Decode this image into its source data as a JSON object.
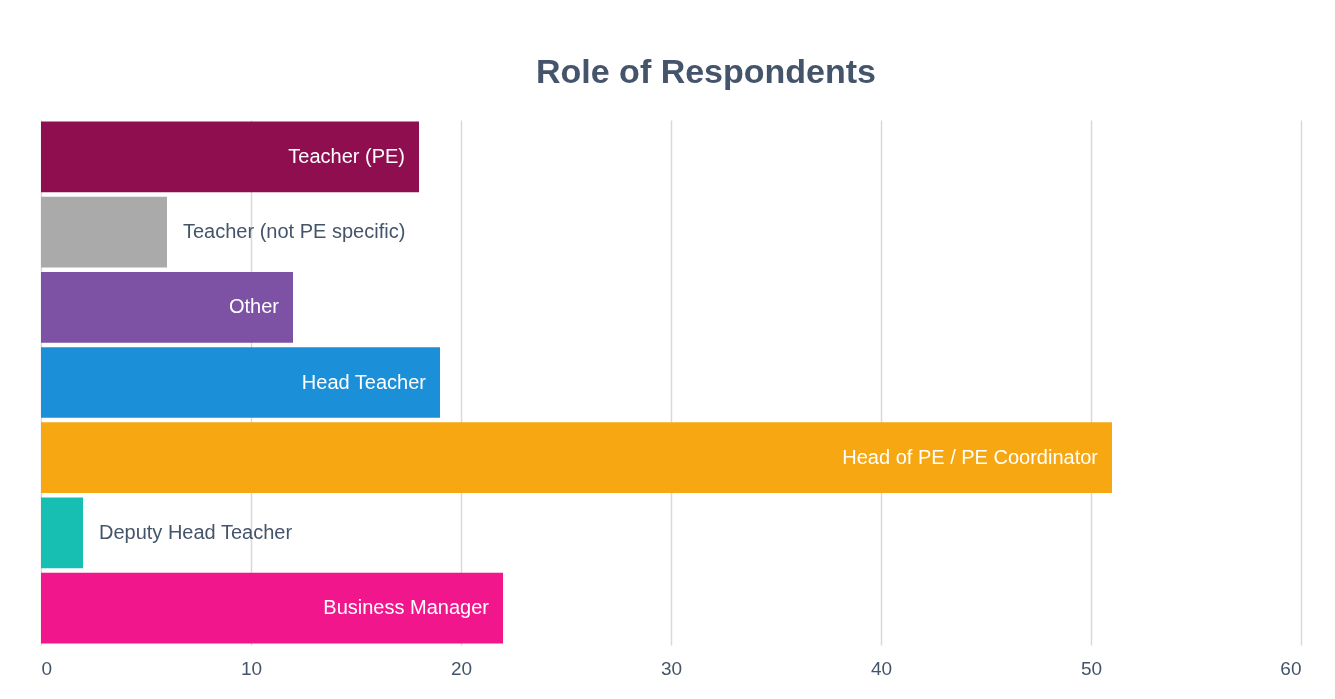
{
  "chart_data": {
    "type": "bar",
    "orientation": "horizontal",
    "title": "Role of Respondents",
    "categories": [
      "Teacher (PE)",
      "Teacher (not PE specific)",
      "Other",
      "Head Teacher",
      "Head of PE / PE Coordinator",
      "Deputy Head Teacher",
      "Business Manager"
    ],
    "values": [
      18,
      6,
      12,
      19,
      51,
      2,
      22
    ],
    "colors": [
      "#8e0e50",
      "#aaaaaa",
      "#7d51a3",
      "#1b8fd8",
      "#f7a712",
      "#17bfb2",
      "#f2168c"
    ],
    "xlim": [
      0,
      60
    ],
    "xticks": [
      0,
      10,
      20,
      30,
      40,
      50,
      60
    ],
    "grid": "x",
    "tick_labels": "x"
  }
}
